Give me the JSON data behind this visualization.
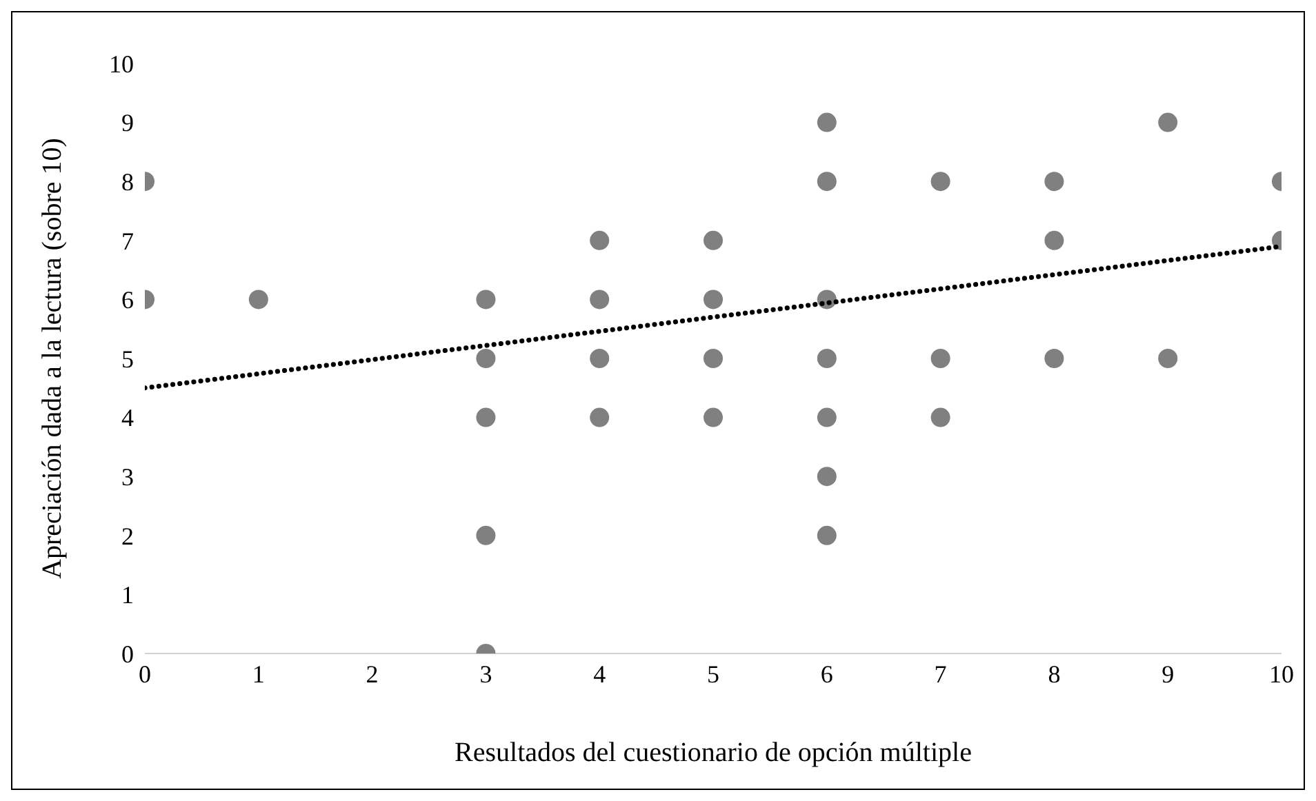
{
  "chart_data": {
    "type": "scatter",
    "xlabel": "Resultados del cuestionario de opción múltiple",
    "ylabel": "Apreciación dada a la lectura (sobre 10)",
    "xlim": [
      0,
      10
    ],
    "ylim": [
      0,
      10
    ],
    "xticks": [
      0,
      1,
      2,
      3,
      4,
      5,
      6,
      7,
      8,
      9,
      10
    ],
    "yticks": [
      0,
      1,
      2,
      3,
      4,
      5,
      6,
      7,
      8,
      9,
      10
    ],
    "series": [
      {
        "marker": "circle",
        "color": "#808080",
        "x": [
          0,
          0,
          1,
          3,
          3,
          3,
          3,
          3,
          4,
          4,
          4,
          4,
          5,
          5,
          5,
          5,
          6,
          6,
          6,
          6,
          6,
          6,
          6,
          7,
          7,
          7,
          8,
          8,
          8,
          9,
          9,
          10,
          10
        ],
        "values": [
          8,
          6,
          6,
          6,
          5,
          4,
          2,
          0,
          7,
          6,
          5,
          4,
          7,
          6,
          5,
          4,
          9,
          8,
          6,
          5,
          4,
          3,
          2,
          8,
          5,
          4,
          8,
          7,
          5,
          9,
          5,
          8,
          7
        ]
      },
      {
        "type": "line",
        "color": "#000000",
        "line_style": "dotted",
        "x": [
          0,
          10
        ],
        "values": [
          4.5,
          6.9
        ]
      }
    ]
  }
}
